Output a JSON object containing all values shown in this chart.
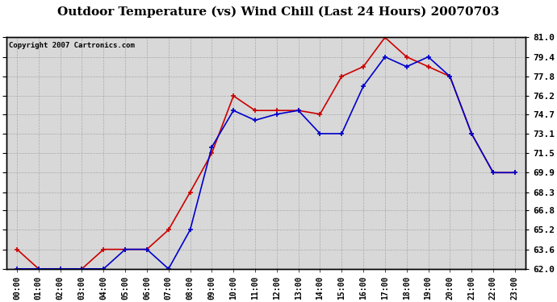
{
  "title": "Outdoor Temperature (vs) Wind Chill (Last 24 Hours) 20070703",
  "copyright": "Copyright 2007 Cartronics.com",
  "hours": [
    "00:00",
    "01:00",
    "02:00",
    "03:00",
    "04:00",
    "05:00",
    "06:00",
    "07:00",
    "08:00",
    "09:00",
    "10:00",
    "11:00",
    "12:00",
    "13:00",
    "14:00",
    "15:00",
    "16:00",
    "17:00",
    "18:00",
    "19:00",
    "20:00",
    "21:00",
    "22:00",
    "23:00"
  ],
  "outdoor_temp": [
    63.6,
    62.0,
    62.0,
    62.0,
    63.6,
    63.6,
    63.6,
    65.2,
    68.3,
    71.5,
    76.2,
    75.0,
    75.0,
    75.0,
    74.7,
    77.8,
    78.6,
    81.0,
    79.4,
    78.6,
    77.8,
    73.1,
    69.9,
    69.9
  ],
  "wind_chill": [
    62.0,
    62.0,
    62.0,
    62.0,
    62.0,
    63.6,
    63.6,
    62.0,
    65.2,
    72.0,
    75.0,
    74.2,
    74.7,
    75.0,
    73.1,
    73.1,
    77.0,
    79.4,
    78.6,
    79.4,
    77.8,
    73.1,
    69.9,
    69.9
  ],
  "temp_color": "#cc0000",
  "wind_color": "#0000cc",
  "bg_color": "#ffffff",
  "plot_bg": "#d8d8d8",
  "grid_color": "#aaaaaa",
  "ylim_min": 62.0,
  "ylim_max": 81.0,
  "yticks": [
    62.0,
    63.6,
    65.2,
    66.8,
    68.3,
    69.9,
    71.5,
    73.1,
    74.7,
    76.2,
    77.8,
    79.4,
    81.0
  ],
  "title_fontsize": 11,
  "copyright_fontsize": 6.5,
  "tick_fontsize": 7,
  "ylabel_fontsize": 8,
  "marker": "+",
  "markersize": 5,
  "linewidth": 1.2
}
